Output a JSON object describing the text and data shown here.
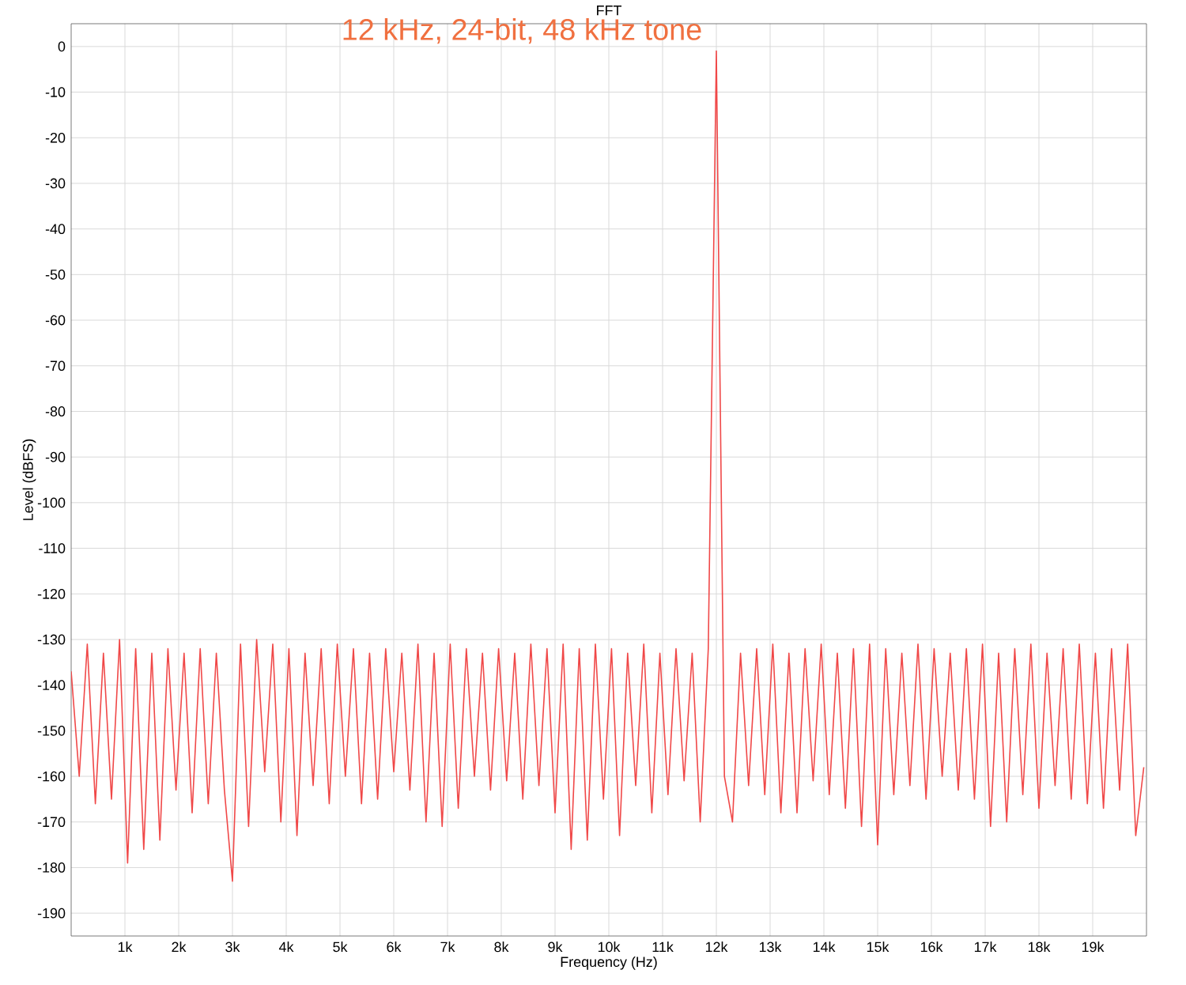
{
  "chart_data": {
    "type": "line",
    "title": "FFT",
    "subtitle": "12 kHz, 24-bit, 48 kHz tone",
    "xlabel": "Frequency (Hz)",
    "ylabel": "Level (dBFS)",
    "xlim": [
      0,
      20000
    ],
    "ylim": [
      -195,
      5
    ],
    "xticks": [
      {
        "value": 1000,
        "label": "1k"
      },
      {
        "value": 2000,
        "label": "2k"
      },
      {
        "value": 3000,
        "label": "3k"
      },
      {
        "value": 4000,
        "label": "4k"
      },
      {
        "value": 5000,
        "label": "5k"
      },
      {
        "value": 6000,
        "label": "6k"
      },
      {
        "value": 7000,
        "label": "7k"
      },
      {
        "value": 8000,
        "label": "8k"
      },
      {
        "value": 9000,
        "label": "9k"
      },
      {
        "value": 10000,
        "label": "10k"
      },
      {
        "value": 11000,
        "label": "11k"
      },
      {
        "value": 12000,
        "label": "12k"
      },
      {
        "value": 13000,
        "label": "13k"
      },
      {
        "value": 14000,
        "label": "14k"
      },
      {
        "value": 15000,
        "label": "15k"
      },
      {
        "value": 16000,
        "label": "16k"
      },
      {
        "value": 17000,
        "label": "17k"
      },
      {
        "value": 18000,
        "label": "18k"
      },
      {
        "value": 19000,
        "label": "19k"
      }
    ],
    "yticks": [
      0,
      -10,
      -20,
      -30,
      -40,
      -50,
      -60,
      -70,
      -80,
      -90,
      -100,
      -110,
      -120,
      -130,
      -140,
      -150,
      -160,
      -170,
      -180,
      -190
    ],
    "grid": true,
    "series": [
      {
        "color": "#f04848",
        "x": [
          0,
          150,
          300,
          450,
          600,
          750,
          900,
          1050,
          1200,
          1350,
          1500,
          1650,
          1800,
          1950,
          2100,
          2250,
          2400,
          2550,
          2700,
          2850,
          3000,
          3150,
          3300,
          3450,
          3600,
          3750,
          3900,
          4050,
          4200,
          4350,
          4500,
          4650,
          4800,
          4950,
          5100,
          5250,
          5400,
          5550,
          5700,
          5850,
          6000,
          6150,
          6300,
          6450,
          6600,
          6750,
          6900,
          7050,
          7200,
          7350,
          7500,
          7650,
          7800,
          7950,
          8100,
          8250,
          8400,
          8550,
          8700,
          8850,
          9000,
          9150,
          9300,
          9450,
          9600,
          9750,
          9900,
          10050,
          10200,
          10350,
          10500,
          10650,
          10800,
          10950,
          11100,
          11250,
          11400,
          11550,
          11700,
          11850,
          12000,
          12150,
          12300,
          12450,
          12600,
          12750,
          12900,
          13050,
          13200,
          13350,
          13500,
          13650,
          13800,
          13950,
          14100,
          14250,
          14400,
          14550,
          14700,
          14850,
          15000,
          15150,
          15300,
          15450,
          15600,
          15750,
          15900,
          16050,
          16200,
          16350,
          16500,
          16650,
          16800,
          16950,
          17100,
          17250,
          17400,
          17550,
          17700,
          17850,
          18000,
          18150,
          18300,
          18450,
          18600,
          18750,
          18900,
          19050,
          19200,
          19350,
          19500,
          19650,
          19800,
          19950
        ],
        "values": [
          -137,
          -160,
          -131,
          -166,
          -133,
          -165,
          -130,
          -179,
          -132,
          -176,
          -133,
          -174,
          -132,
          -163,
          -133,
          -168,
          -132,
          -166,
          -133,
          -163,
          -183,
          -131,
          -171,
          -130,
          -159,
          -131,
          -170,
          -132,
          -173,
          -133,
          -162,
          -132,
          -166,
          -131,
          -160,
          -132,
          -166,
          -133,
          -165,
          -132,
          -159,
          -133,
          -163,
          -131,
          -170,
          -133,
          -171,
          -131,
          -167,
          -132,
          -160,
          -133,
          -163,
          -132,
          -161,
          -133,
          -165,
          -131,
          -162,
          -132,
          -168,
          -131,
          -176,
          -132,
          -174,
          -131,
          -165,
          -132,
          -173,
          -133,
          -162,
          -131,
          -168,
          -133,
          -164,
          -132,
          -161,
          -133,
          -170,
          -132,
          -1,
          -160,
          -170,
          -133,
          -162,
          -132,
          -164,
          -131,
          -168,
          -133,
          -168,
          -132,
          -161,
          -131,
          -164,
          -133,
          -167,
          -132,
          -171,
          -131,
          -175,
          -132,
          -164,
          -133,
          -162,
          -131,
          -165,
          -132,
          -160,
          -133,
          -163,
          -132,
          -165,
          -131,
          -171,
          -133,
          -170,
          -132,
          -164,
          -131,
          -167,
          -133,
          -162,
          -132,
          -165,
          -131,
          -166,
          -133,
          -167,
          -132,
          -163,
          -131,
          -173,
          -158
        ]
      }
    ]
  }
}
